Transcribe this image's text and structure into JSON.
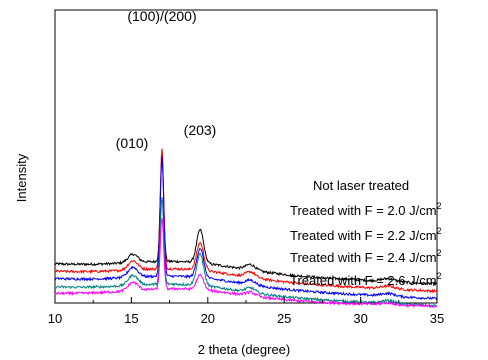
{
  "chart_data": {
    "type": "line",
    "xlabel": "2 theta (degree)",
    "ylabel": "Intensity",
    "xlim": [
      10,
      35
    ],
    "x_ticks": [
      "10",
      "15",
      "20",
      "25",
      "30",
      "35"
    ],
    "y_ticks_labeled": false,
    "grid": false,
    "legend": "none (series labeled directly to the right of each trace)",
    "peak_annotations": [
      {
        "text": "(010)",
        "x": 15.1
      },
      {
        "text": "(100)/(200)",
        "x": 17.0
      },
      {
        "text": "(203)",
        "x": 19.5
      }
    ],
    "peaks_x": [
      15.1,
      17.0,
      19.5,
      22.8,
      31.8
    ],
    "series": [
      {
        "name": "Not laser treated",
        "label_text": "Not laser treated",
        "label_sup": "",
        "color": "#000000",
        "baseline": 42,
        "slope": -0.85,
        "amplitudes": [
          9,
          112,
          36,
          6,
          3
        ]
      },
      {
        "name": "Treated with F = 2.0 J/cm2",
        "label_text": "Treated with F = 2.0 J/cm",
        "label_sup": "2",
        "color": "#ff0000",
        "baseline": 34,
        "slope": -0.85,
        "amplitudes": [
          10,
          130,
          30,
          6,
          3
        ]
      },
      {
        "name": "Treated with F = 2.2 J/cm2",
        "label_text": "Treated with F = 2.2 J/cm",
        "label_sup": "2",
        "color": "#0000ff",
        "baseline": 26,
        "slope": -0.85,
        "amplitudes": [
          11,
          130,
          32,
          5,
          3
        ]
      },
      {
        "name": "Treated with F = 2.4 J/cm2",
        "label_text": "Treated with F = 2.4 J/cm",
        "label_sup": "2",
        "color": "#008080",
        "baseline": 17,
        "slope": -0.8,
        "amplitudes": [
          11,
          94,
          34,
          5,
          3
        ]
      },
      {
        "name": "Treated with F = 2.6 J/cm2",
        "label_text": "Treated with F = 2.6 J/cm",
        "label_sup": "2",
        "color": "#ff00ff",
        "baseline": 10,
        "slope": -0.55,
        "amplitudes": [
          9,
          76,
          16,
          4,
          2
        ]
      }
    ]
  }
}
